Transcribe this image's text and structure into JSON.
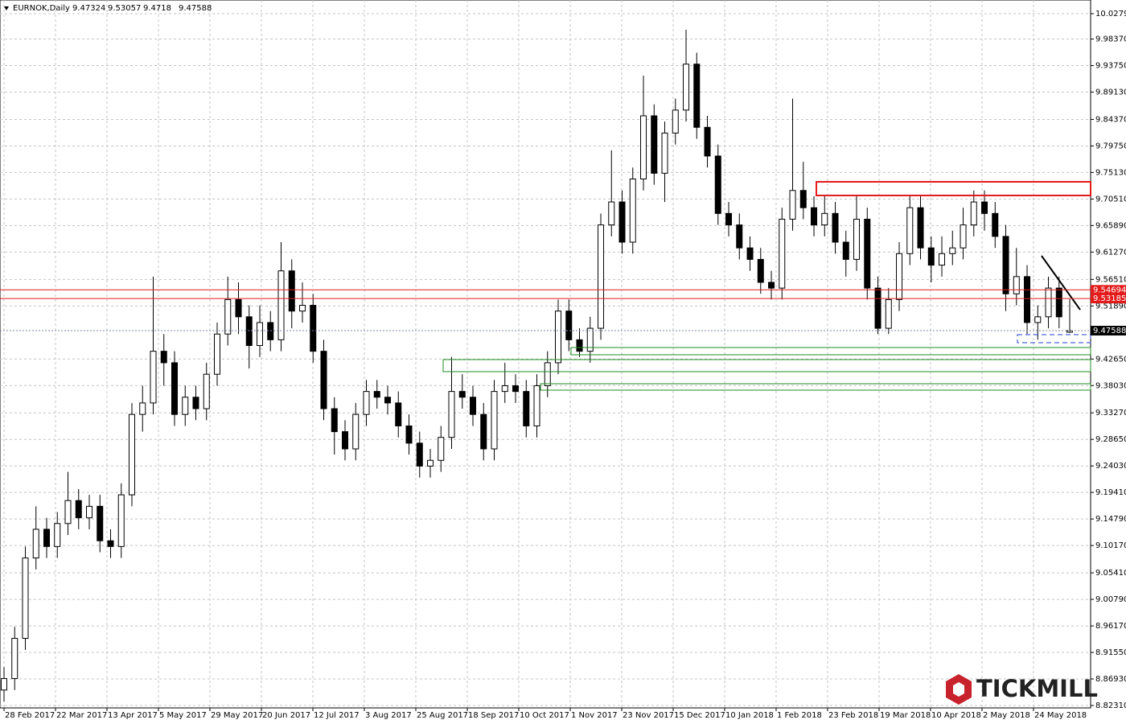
{
  "chart_data": {
    "type": "candlestick",
    "title": "EURNOK,Daily",
    "watermark": "TICKMILL",
    "open": [
      8.85,
      8.87,
      8.94,
      9.08,
      9.13,
      9.1,
      9.14,
      9.18,
      9.15,
      9.17,
      9.11,
      9.1,
      9.19,
      9.33,
      9.35,
      9.44,
      9.42,
      9.33,
      9.36,
      9.34,
      9.4,
      9.47,
      9.53,
      9.5,
      9.45,
      9.49,
      9.46,
      9.58,
      9.51,
      9.52,
      9.44,
      9.34,
      9.3,
      9.27,
      9.33,
      9.37,
      9.36,
      9.35,
      9.31,
      9.28,
      9.24,
      9.25,
      9.29,
      9.37,
      9.36,
      9.33,
      9.27,
      9.37,
      9.38,
      9.37,
      9.31,
      9.38,
      9.42,
      9.51,
      9.46,
      9.44,
      9.48,
      9.66,
      9.7,
      9.63,
      9.74,
      9.85,
      9.75,
      9.82,
      9.86,
      9.94,
      9.83,
      9.78,
      9.68,
      9.66,
      9.62,
      9.6,
      9.56,
      9.55,
      9.67,
      9.72,
      9.69,
      9.66,
      9.68,
      9.63,
      9.6,
      9.67,
      9.55,
      9.48,
      9.53,
      9.61,
      9.69,
      9.62,
      9.59,
      9.61,
      9.62,
      9.66,
      9.7,
      9.68,
      9.64,
      9.54,
      9.57,
      9.49,
      9.5,
      9.55,
      9.47324
    ],
    "high": [
      8.89,
      8.96,
      9.1,
      9.17,
      9.15,
      9.16,
      9.23,
      9.2,
      9.19,
      9.19,
      9.13,
      9.21,
      9.35,
      9.38,
      9.57,
      9.47,
      9.44,
      9.38,
      9.38,
      9.42,
      9.49,
      9.57,
      9.56,
      9.52,
      9.52,
      9.51,
      9.63,
      9.6,
      9.56,
      9.54,
      9.46,
      9.36,
      9.32,
      9.35,
      9.39,
      9.39,
      9.38,
      9.37,
      9.33,
      9.3,
      9.27,
      9.31,
      9.43,
      9.4,
      9.38,
      9.35,
      9.39,
      9.42,
      9.4,
      9.39,
      9.4,
      9.44,
      9.53,
      9.53,
      9.48,
      9.5,
      9.68,
      9.79,
      9.72,
      9.76,
      9.92,
      9.87,
      9.84,
      9.88,
      10.0,
      9.96,
      9.85,
      9.8,
      9.7,
      9.68,
      9.64,
      9.62,
      9.58,
      9.69,
      9.88,
      9.77,
      9.71,
      9.71,
      9.7,
      9.65,
      9.71,
      9.69,
      9.57,
      9.55,
      9.63,
      9.71,
      9.71,
      9.64,
      9.64,
      9.65,
      9.69,
      9.72,
      9.72,
      9.7,
      9.66,
      9.62,
      9.59,
      9.52,
      9.57,
      9.57,
      9.53057
    ],
    "low": [
      8.83,
      8.85,
      8.92,
      9.06,
      9.08,
      9.08,
      9.12,
      9.13,
      9.13,
      9.09,
      9.08,
      9.08,
      9.17,
      9.3,
      9.33,
      9.38,
      9.31,
      9.31,
      9.32,
      9.32,
      9.38,
      9.45,
      9.47,
      9.41,
      9.43,
      9.44,
      9.44,
      9.48,
      9.49,
      9.42,
      9.32,
      9.26,
      9.25,
      9.25,
      9.31,
      9.34,
      9.33,
      9.29,
      9.26,
      9.22,
      9.22,
      9.23,
      9.27,
      9.34,
      9.31,
      9.25,
      9.25,
      9.35,
      9.35,
      9.29,
      9.29,
      9.36,
      9.4,
      9.44,
      9.43,
      9.42,
      9.46,
      9.64,
      9.61,
      9.61,
      9.72,
      9.73,
      9.7,
      9.8,
      9.84,
      9.81,
      9.76,
      9.66,
      9.64,
      9.6,
      9.58,
      9.54,
      9.53,
      9.53,
      9.65,
      9.67,
      9.64,
      9.64,
      9.61,
      9.57,
      9.58,
      9.53,
      9.47,
      9.47,
      9.51,
      9.59,
      9.6,
      9.56,
      9.57,
      9.59,
      9.6,
      9.64,
      9.65,
      9.62,
      9.51,
      9.52,
      9.47,
      9.46,
      9.48,
      9.48,
      9.4718
    ],
    "close": [
      8.87,
      8.94,
      9.08,
      9.13,
      9.1,
      9.14,
      9.18,
      9.15,
      9.17,
      9.11,
      9.1,
      9.19,
      9.33,
      9.35,
      9.44,
      9.42,
      9.33,
      9.36,
      9.34,
      9.4,
      9.47,
      9.53,
      9.5,
      9.45,
      9.49,
      9.46,
      9.58,
      9.51,
      9.52,
      9.44,
      9.34,
      9.3,
      9.27,
      9.33,
      9.37,
      9.36,
      9.35,
      9.31,
      9.28,
      9.24,
      9.25,
      9.29,
      9.37,
      9.36,
      9.33,
      9.27,
      9.37,
      9.38,
      9.37,
      9.31,
      9.38,
      9.42,
      9.51,
      9.46,
      9.44,
      9.48,
      9.66,
      9.7,
      9.63,
      9.74,
      9.85,
      9.75,
      9.82,
      9.86,
      9.94,
      9.83,
      9.78,
      9.68,
      9.66,
      9.62,
      9.6,
      9.56,
      9.55,
      9.67,
      9.72,
      9.69,
      9.66,
      9.68,
      9.63,
      9.6,
      9.67,
      9.55,
      9.48,
      9.53,
      9.61,
      9.69,
      9.62,
      9.59,
      9.61,
      9.62,
      9.66,
      9.7,
      9.68,
      9.64,
      9.54,
      9.57,
      9.49,
      9.5,
      9.55,
      9.5,
      9.47588
    ],
    "xlim": [
      -0.377,
      101.96
    ],
    "ylim": [
      8.8189,
      10.0517
    ],
    "xticks": [
      {
        "value": 0,
        "label": "28 Feb 2017"
      },
      {
        "value": 4.83,
        "label": "22 Mar 2017"
      },
      {
        "value": 9.66,
        "label": "13 Apr 2017"
      },
      {
        "value": 14.49,
        "label": "5 May 2017"
      },
      {
        "value": 19.32,
        "label": "29 May 2017"
      },
      {
        "value": 24.15,
        "label": "20 Jun 2017"
      },
      {
        "value": 28.98,
        "label": "12 Jul 2017"
      },
      {
        "value": 33.81,
        "label": "3 Aug 2017"
      },
      {
        "value": 38.64,
        "label": "25 Aug 2017"
      },
      {
        "value": 43.47,
        "label": "18 Sep 2017"
      },
      {
        "value": 48.3,
        "label": "10 Oct 2017"
      },
      {
        "value": 53.13,
        "label": "1 Nov 2017"
      },
      {
        "value": 57.96,
        "label": "23 Nov 2017"
      },
      {
        "value": 62.79,
        "label": "15 Dec 2017"
      },
      {
        "value": 67.62,
        "label": "10 Jan 2018"
      },
      {
        "value": 72.45,
        "label": "1 Feb 2018"
      },
      {
        "value": 77.28,
        "label": "23 Feb 2018"
      },
      {
        "value": 82.11,
        "label": "19 Mar 2018"
      },
      {
        "value": 86.94,
        "label": "10 Apr 2018"
      },
      {
        "value": 91.77,
        "label": "2 May 2018"
      },
      {
        "value": 96.6,
        "label": "24 May 2018"
      }
    ],
    "yticks": [
      {
        "value": 10.0279,
        "label": "10.02790"
      },
      {
        "value": 9.9837,
        "label": "9.98370"
      },
      {
        "value": 9.9375,
        "label": "9.93750"
      },
      {
        "value": 9.8913,
        "label": "9.89130"
      },
      {
        "value": 9.8437,
        "label": "9.84370"
      },
      {
        "value": 9.7975,
        "label": "9.79750"
      },
      {
        "value": 9.7513,
        "label": "9.75130"
      },
      {
        "value": 9.7051,
        "label": "9.70510"
      },
      {
        "value": 9.6589,
        "label": "9.65890"
      },
      {
        "value": 9.6127,
        "label": "9.61270"
      },
      {
        "value": 9.5651,
        "label": "9.56510"
      },
      {
        "value": 9.5189,
        "label": "9.51890"
      },
      {
        "value": 9.4265,
        "label": "9.42650"
      },
      {
        "value": 9.3803,
        "label": "9.38030"
      },
      {
        "value": 9.3327,
        "label": "9.33270"
      },
      {
        "value": 9.2865,
        "label": "9.28650"
      },
      {
        "value": 9.2403,
        "label": "9.24030"
      },
      {
        "value": 9.1941,
        "label": "9.19410"
      },
      {
        "value": 9.1479,
        "label": "9.14790"
      },
      {
        "value": 9.1017,
        "label": "9.10170"
      },
      {
        "value": 9.0541,
        "label": "9.05410"
      },
      {
        "value": 9.0079,
        "label": "9.00790"
      },
      {
        "value": 8.9617,
        "label": "8.96170"
      },
      {
        "value": 8.9155,
        "label": "8.91550"
      },
      {
        "value": 8.8693,
        "label": "8.86930"
      },
      {
        "value": 8.8231,
        "label": "8.82310"
      }
    ],
    "levels": [
      9.54694,
      9.53185
    ],
    "level_color": "#e31b1b",
    "grid": true,
    "bull_color": "#ffffff",
    "bear_color": "#000000"
  }
}
